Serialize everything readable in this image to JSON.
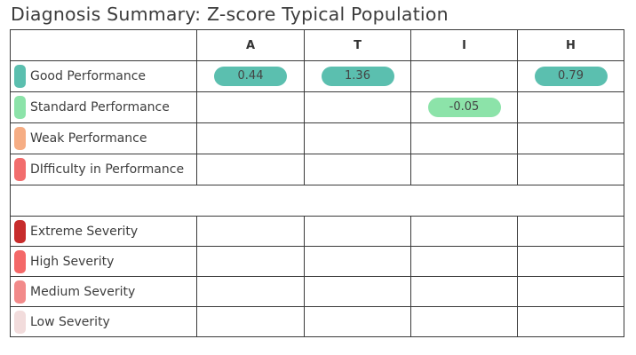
{
  "title": "Diagnosis Summary: Z-score Typical Population",
  "columns": [
    "A",
    "T",
    "I",
    "H"
  ],
  "chart_data": {
    "type": "table",
    "title": "Diagnosis Summary: Z-score Typical Population",
    "columns": [
      "A",
      "T",
      "I",
      "H"
    ],
    "performance_rows": [
      {
        "label": "Good Performance",
        "color": "#5bbfaf",
        "values": [
          "0.44",
          "1.36",
          "",
          "0.79"
        ]
      },
      {
        "label": "Standard Performance",
        "color": "#8ce3a9",
        "values": [
          "",
          "",
          "-0.05",
          ""
        ]
      },
      {
        "label": "Weak Performance",
        "color": "#f6ad84",
        "values": [
          "",
          "",
          "",
          ""
        ]
      },
      {
        "label": "DIfficulty in Performance",
        "color": "#f26d6d",
        "values": [
          "",
          "",
          "",
          ""
        ]
      }
    ],
    "severity_rows": [
      {
        "label": "Extreme Severity",
        "color": "#c72c2c",
        "values": [
          "",
          "",
          "",
          ""
        ]
      },
      {
        "label": "High Severity",
        "color": "#f46868",
        "values": [
          "",
          "",
          "",
          ""
        ]
      },
      {
        "label": "Medium Severity",
        "color": "#f28a8a",
        "values": [
          "",
          "",
          "",
          ""
        ]
      },
      {
        "label": "Low Severity",
        "color": "#f2dcdc",
        "values": [
          "",
          "",
          "",
          ""
        ]
      }
    ]
  }
}
